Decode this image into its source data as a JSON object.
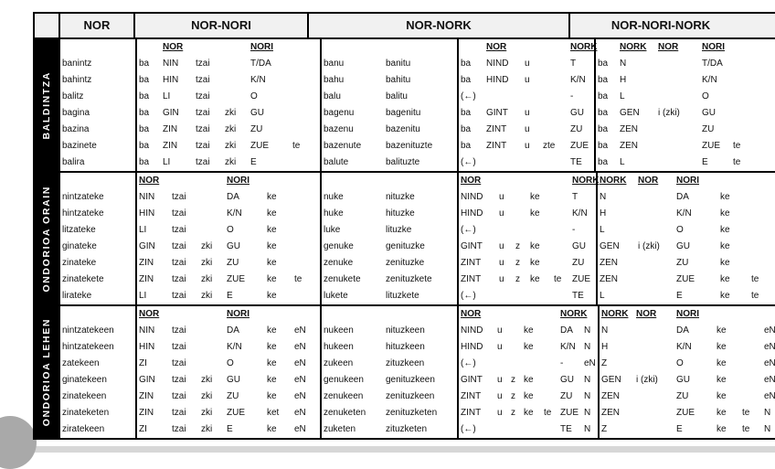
{
  "header": {
    "corner": "",
    "nor": "NOR",
    "nor_nori": "NOR-NORI",
    "nor_nork": "NOR-NORK",
    "nor_nori_nork": "NOR-NORI-NORK"
  },
  "colors": {
    "table_border": "#000000",
    "section_label_bg": "#000000",
    "header_bg": "#f1f1f1",
    "decoration_gray": "#a9a9a9"
  },
  "sections": [
    {
      "id": "baldintza",
      "label": "BALDINTZA",
      "words": [
        "banintz",
        "bahintz",
        "balitz",
        "bagina",
        "bazina",
        "bazinete",
        "balira"
      ],
      "nor_nori": {
        "header": [
          "",
          "NOR",
          "",
          "",
          "NORI",
          ""
        ],
        "rows": [
          [
            "ba",
            "NIN",
            "tzai",
            "",
            "T/DA",
            ""
          ],
          [
            "ba",
            "HIN",
            "tzai",
            "",
            "K/N",
            ""
          ],
          [
            "ba",
            "LI",
            "tzai",
            "",
            "O",
            ""
          ],
          [
            "ba",
            "GIN",
            "tzai",
            "zki",
            "GU",
            ""
          ],
          [
            "ba",
            "ZIN",
            "tzai",
            "zki",
            "ZU",
            ""
          ],
          [
            "ba",
            "ZIN",
            "tzai",
            "zki",
            "ZUE",
            "te"
          ],
          [
            "ba",
            "LI",
            "tzai",
            "zki",
            "E",
            ""
          ]
        ]
      },
      "nor_nork": {
        "header": [
          "",
          "NOR",
          "",
          "",
          "NORK"
        ],
        "words": [
          [
            "banu",
            "banitu"
          ],
          [
            "bahu",
            "bahitu"
          ],
          [
            "balu",
            "balitu"
          ],
          [
            "bagenu",
            "bagenitu"
          ],
          [
            "bazenu",
            "bazenitu"
          ],
          [
            "bazenute",
            "bazenituzte"
          ],
          [
            "balute",
            "balituzte"
          ]
        ],
        "rows": [
          [
            "ba",
            "NIND",
            "u",
            "",
            "T"
          ],
          [
            "ba",
            "HIND",
            "u",
            "",
            "K/N"
          ],
          [
            "(←)",
            "",
            "",
            "",
            "-"
          ],
          [
            "ba",
            "GINT",
            "u",
            "",
            "GU"
          ],
          [
            "ba",
            "ZINT",
            "u",
            "",
            "ZU"
          ],
          [
            "ba",
            "ZINT",
            "u",
            "zte",
            "ZUE"
          ],
          [
            "(←)",
            "",
            "",
            "",
            "TE"
          ]
        ]
      },
      "nor_nori_nork": {
        "header": [
          "",
          "NORK",
          "NOR",
          "NORI",
          ""
        ],
        "rows": [
          [
            "ba",
            "N",
            "",
            "T/DA",
            ""
          ],
          [
            "ba",
            "H",
            "",
            "K/N",
            ""
          ],
          [
            "ba",
            "L",
            "",
            "O",
            ""
          ],
          [
            "ba",
            "GEN",
            "i (zki)",
            "GU",
            ""
          ],
          [
            "ba",
            "ZEN",
            "",
            "ZU",
            ""
          ],
          [
            "ba",
            "ZEN",
            "",
            "ZUE",
            "te"
          ],
          [
            "ba",
            "L",
            "",
            "E",
            "te"
          ]
        ]
      }
    },
    {
      "id": "ondorioa-orain",
      "label": "ONDORIOA ORAIN",
      "words": [
        "nintzateke",
        "hintzateke",
        "litzateke",
        "ginateke",
        "zinateke",
        "zinatekete",
        "lirateke"
      ],
      "nor_nori": {
        "header": [
          "NOR",
          "",
          "",
          "NORI",
          "",
          ""
        ],
        "rows": [
          [
            "NIN",
            "tzai",
            "",
            "DA",
            "ke",
            ""
          ],
          [
            "HIN",
            "tzai",
            "",
            "K/N",
            "ke",
            ""
          ],
          [
            "LI",
            "tzai",
            "",
            "O",
            "ke",
            ""
          ],
          [
            "GIN",
            "tzai",
            "zki",
            "GU",
            "ke",
            ""
          ],
          [
            "ZIN",
            "tzai",
            "zki",
            "ZU",
            "ke",
            ""
          ],
          [
            "ZIN",
            "tzai",
            "zki",
            "ZUE",
            "ke",
            "te"
          ],
          [
            "LI",
            "tzai",
            "zki",
            "E",
            "ke",
            ""
          ]
        ]
      },
      "nor_nork": {
        "header": [
          "NOR",
          "",
          "",
          "",
          "",
          "NORK"
        ],
        "words": [
          [
            "nuke",
            "nituzke"
          ],
          [
            "huke",
            "hituzke"
          ],
          [
            "luke",
            "lituzke"
          ],
          [
            "genuke",
            "genituzke"
          ],
          [
            "zenuke",
            "zenituzke"
          ],
          [
            "zenukete",
            "zenituzkete"
          ],
          [
            "lukete",
            "lituzkete"
          ]
        ],
        "rows": [
          [
            "NIND",
            "u",
            "",
            "ke",
            "",
            "T"
          ],
          [
            "HIND",
            "u",
            "",
            "ke",
            "",
            "K/N"
          ],
          [
            "(←)",
            "",
            "",
            "",
            "",
            "-"
          ],
          [
            "GINT",
            "u",
            "z",
            "ke",
            "",
            "GU"
          ],
          [
            "ZINT",
            "u",
            "z",
            "ke",
            "",
            "ZU"
          ],
          [
            "ZINT",
            "u",
            "z",
            "ke",
            "te",
            "ZUE"
          ],
          [
            "(←)",
            "",
            "",
            "",
            "",
            "TE"
          ]
        ]
      },
      "nor_nori_nork": {
        "header": [
          "NORK",
          "NOR",
          "NORI",
          "",
          ""
        ],
        "rows": [
          [
            "N",
            "",
            "DA",
            "ke",
            ""
          ],
          [
            "H",
            "",
            "K/N",
            "ke",
            ""
          ],
          [
            "L",
            "",
            "O",
            "ke",
            ""
          ],
          [
            "GEN",
            "i (zki)",
            "GU",
            "ke",
            ""
          ],
          [
            "ZEN",
            "",
            "ZU",
            "ke",
            ""
          ],
          [
            "ZEN",
            "",
            "ZUE",
            "ke",
            "te"
          ],
          [
            "L",
            "",
            "E",
            "ke",
            "te"
          ]
        ]
      }
    },
    {
      "id": "ondorioa-lehen",
      "label": "ONDORIOA LEHEN",
      "words": [
        "nintzatekeen",
        "hintzatekeen",
        "zatekeen",
        "ginatekeen",
        "zinatekeen",
        "zinateketen",
        "ziratekeen"
      ],
      "nor_nori": {
        "header": [
          "NOR",
          "",
          "",
          "NORI",
          "",
          ""
        ],
        "rows": [
          [
            "NIN",
            "tzai",
            "",
            "DA",
            "ke",
            "eN"
          ],
          [
            "HIN",
            "tzai",
            "",
            "K/N",
            "ke",
            "eN"
          ],
          [
            "ZI",
            "tzai",
            "",
            "O",
            "ke",
            "eN"
          ],
          [
            "GIN",
            "tzai",
            "zki",
            "GU",
            "ke",
            "eN"
          ],
          [
            "ZIN",
            "tzai",
            "zki",
            "ZU",
            "ke",
            "eN"
          ],
          [
            "ZIN",
            "tzai",
            "zki",
            "ZUE",
            "ket",
            "eN"
          ],
          [
            "ZI",
            "tzai",
            "zki",
            "E",
            "ke",
            "eN"
          ]
        ]
      },
      "nor_nork": {
        "header": [
          "NOR",
          "",
          "",
          "",
          "",
          "NORK",
          ""
        ],
        "words": [
          [
            "nukeen",
            "nituzkeen"
          ],
          [
            "hukeen",
            "hituzkeen"
          ],
          [
            "zukeen",
            "zituzkeen"
          ],
          [
            "genukeen",
            "genituzkeen"
          ],
          [
            "zenukeen",
            "zenituzkeen"
          ],
          [
            "zenuketen",
            "zenituzketen"
          ],
          [
            "zuketen",
            "zituzketen"
          ]
        ],
        "rows": [
          [
            "NIND",
            "u",
            "",
            "ke",
            "",
            "DA",
            "N"
          ],
          [
            "HIND",
            "u",
            "",
            "ke",
            "",
            "K/N",
            "N"
          ],
          [
            "(←)",
            "",
            "",
            "",
            "",
            "-",
            "eN"
          ],
          [
            "GINT",
            "u",
            "z",
            "ke",
            "",
            "GU",
            "N"
          ],
          [
            "ZINT",
            "u",
            "z",
            "ke",
            "",
            "ZU",
            "N"
          ],
          [
            "ZINT",
            "u",
            "z",
            "ke",
            "te",
            "ZUE",
            "N"
          ],
          [
            "(←)",
            "",
            "",
            "",
            "",
            "TE",
            "N"
          ]
        ]
      },
      "nor_nori_nork": {
        "header": [
          "NORK",
          "NOR",
          "NORI",
          "",
          "",
          ""
        ],
        "rows": [
          [
            "N",
            "",
            "DA",
            "ke",
            "",
            "eN"
          ],
          [
            "H",
            "",
            "K/N",
            "ke",
            "",
            "eN"
          ],
          [
            "Z",
            "",
            "O",
            "ke",
            "",
            "eN"
          ],
          [
            "GEN",
            "i (zki)",
            "GU",
            "ke",
            "",
            "eN"
          ],
          [
            "ZEN",
            "",
            "ZU",
            "ke",
            "",
            "eN"
          ],
          [
            "ZEN",
            "",
            "ZUE",
            "ke",
            "te",
            "N"
          ],
          [
            "Z",
            "",
            "E",
            "ke",
            "te",
            "N"
          ]
        ]
      }
    }
  ]
}
